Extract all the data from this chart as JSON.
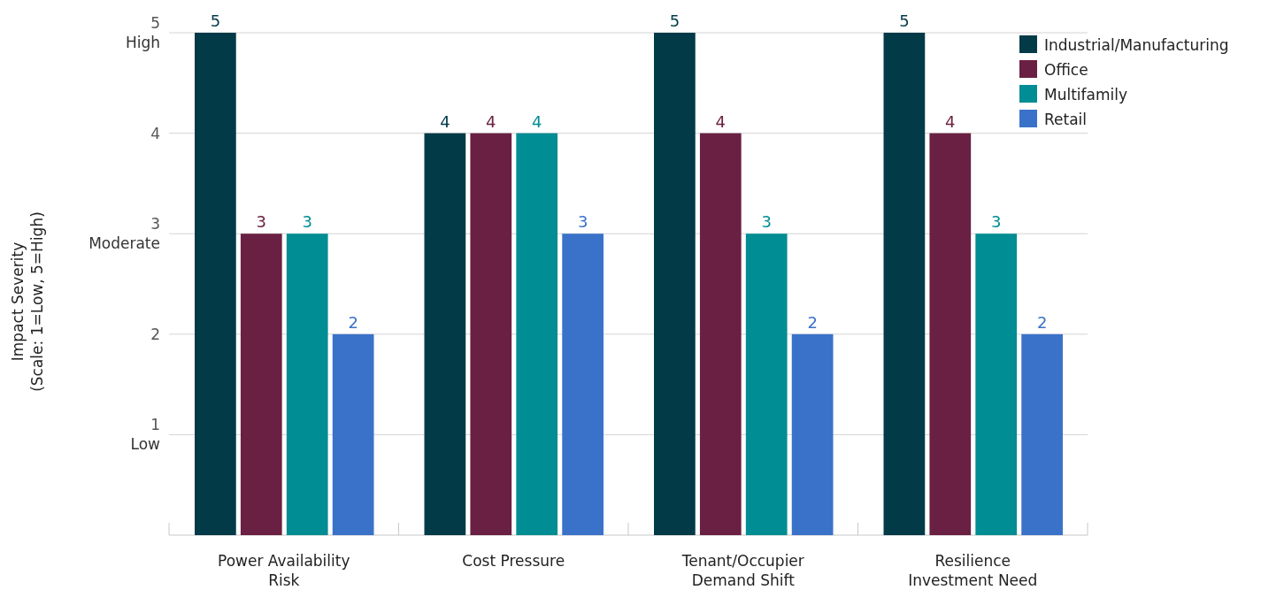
{
  "chart_data": {
    "type": "bar",
    "ylabel": "Impact Severity\n(Scale: 1=Low, 5=High)",
    "categories": [
      "Power Availability Risk",
      "Cost Pressure",
      "Tenant/Occupier Demand Shift",
      "Resilience Investment Need"
    ],
    "series": [
      {
        "name": "Industrial/Manufacturing",
        "color": "#023a48",
        "values": [
          5,
          4,
          5,
          5
        ],
        "value_labels": [
          "5",
          "4",
          "5",
          "5"
        ]
      },
      {
        "name": "Office",
        "color": "#6a2042",
        "values": [
          3,
          4,
          4,
          4
        ],
        "value_labels": [
          "3",
          "4",
          "4",
          "4"
        ]
      },
      {
        "name": "Multifamily",
        "color": "#008d93",
        "values": [
          3,
          4,
          3,
          3
        ],
        "value_labels": [
          "3",
          "4",
          "3",
          "3"
        ]
      },
      {
        "name": "Retail",
        "color": "#3b72c9",
        "values": [
          2,
          3,
          2,
          2
        ],
        "value_labels": [
          "2",
          "3",
          "2",
          "2"
        ]
      }
    ],
    "ylim": [
      0,
      5
    ],
    "yticks": [
      {
        "value": 1,
        "label": "1\nLow"
      },
      2,
      {
        "value": 3,
        "label": "3\nModerate"
      },
      4,
      {
        "value": 5,
        "label": "5\nHigh"
      }
    ],
    "grid": "y",
    "legend": "top right"
  }
}
